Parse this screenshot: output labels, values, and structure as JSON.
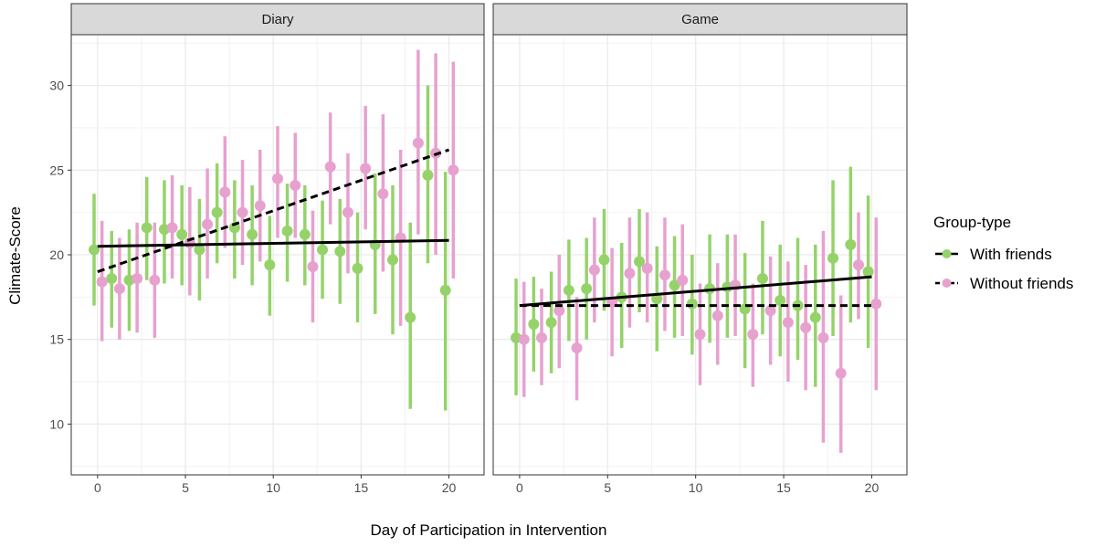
{
  "chart_data": {
    "type": "scatter",
    "xlabel": "Day of Participation in Intervention",
    "ylabel": "Climate-Score",
    "xlim": [
      -1.5,
      22
    ],
    "ylim": [
      7,
      33
    ],
    "xticks": [
      0,
      5,
      10,
      15,
      20
    ],
    "yticks": [
      10,
      15,
      20,
      25,
      30
    ],
    "grid": true,
    "legend": {
      "title": "Group-type",
      "placement": "right",
      "entries": [
        "With friends",
        "Without friends"
      ]
    },
    "colors": {
      "With friends": "#95d36a",
      "Without friends": "#e7a1cf",
      "trend": "#000000"
    },
    "x": [
      0,
      1,
      2,
      3,
      4,
      5,
      6,
      7,
      8,
      9,
      10,
      11,
      12,
      13,
      14,
      15,
      16,
      17,
      18,
      19,
      20
    ],
    "panels": [
      {
        "title": "Diary",
        "series": [
          {
            "name": "With friends",
            "line_style": "solid",
            "mean": [
              20.3,
              18.6,
              18.5,
              21.6,
              21.5,
              21.2,
              20.3,
              22.5,
              21.6,
              21.2,
              19.4,
              21.4,
              21.2,
              20.3,
              20.2,
              19.2,
              20.6,
              19.7,
              16.3,
              24.7,
              17.9
            ],
            "lower": [
              17.0,
              15.7,
              15.5,
              18.5,
              18.3,
              18.2,
              17.3,
              19.5,
              18.6,
              18.2,
              16.4,
              18.4,
              18.2,
              17.4,
              17.1,
              16.0,
              16.5,
              15.3,
              10.9,
              19.5,
              10.8
            ],
            "upper": [
              23.6,
              21.4,
              21.5,
              24.6,
              24.4,
              24.1,
              23.3,
              25.4,
              24.4,
              24.1,
              22.3,
              24.2,
              24.1,
              23.2,
              23.3,
              22.5,
              24.8,
              24.1,
              21.9,
              30.0,
              24.9
            ],
            "trend": [
              20.5,
              20.85
            ]
          },
          {
            "name": "Without friends",
            "line_style": "dashed",
            "mean": [
              18.4,
              18.0,
              18.6,
              18.5,
              21.6,
              20.7,
              21.8,
              23.7,
              22.5,
              22.9,
              24.5,
              24.1,
              19.3,
              25.2,
              22.5,
              25.1,
              23.6,
              21.0,
              26.6,
              26.0,
              25.0
            ],
            "lower": [
              14.9,
              15.0,
              15.4,
              15.1,
              18.6,
              17.6,
              18.6,
              20.4,
              19.4,
              19.6,
              21.0,
              21.0,
              16.0,
              21.8,
              18.9,
              21.5,
              19.0,
              15.8,
              21.2,
              20.0,
              18.6
            ],
            "upper": [
              22.0,
              21.0,
              21.9,
              21.9,
              24.7,
              24.0,
              25.1,
              27.0,
              25.6,
              26.2,
              27.6,
              27.2,
              22.6,
              28.4,
              26.0,
              28.8,
              28.3,
              26.2,
              32.1,
              31.9,
              31.4
            ],
            "trend": [
              19.0,
              26.2
            ]
          }
        ]
      },
      {
        "title": "Game",
        "series": [
          {
            "name": "With friends",
            "line_style": "solid",
            "mean": [
              15.1,
              15.9,
              16.0,
              17.9,
              18.0,
              19.7,
              17.5,
              19.6,
              17.4,
              18.2,
              17.1,
              18.0,
              18.1,
              16.8,
              18.6,
              17.3,
              17.0,
              16.3,
              19.8,
              20.6,
              19.0
            ],
            "lower": [
              11.7,
              13.1,
              13.0,
              14.9,
              15.0,
              16.7,
              14.5,
              16.6,
              14.3,
              15.1,
              14.1,
              14.8,
              15.1,
              13.3,
              15.3,
              14.0,
              13.8,
              12.2,
              15.2,
              16.0,
              14.5
            ],
            "upper": [
              18.6,
              18.7,
              19.0,
              20.9,
              21.0,
              22.7,
              20.7,
              22.7,
              20.5,
              21.1,
              20.0,
              21.2,
              21.2,
              20.1,
              22.0,
              20.6,
              21.0,
              20.6,
              24.4,
              25.2,
              23.5
            ],
            "trend": [
              17.0,
              18.7
            ]
          },
          {
            "name": "Without friends",
            "line_style": "dashed",
            "mean": [
              15.0,
              15.1,
              16.7,
              14.5,
              19.1,
              17.2,
              18.9,
              19.2,
              18.8,
              18.5,
              15.3,
              16.4,
              18.2,
              15.3,
              16.7,
              16.0,
              15.7,
              15.1,
              13.0,
              19.4,
              17.1
            ],
            "lower": [
              11.6,
              12.3,
              13.3,
              11.4,
              16.0,
              14.0,
              15.7,
              16.0,
              15.5,
              15.2,
              12.3,
              13.5,
              15.2,
              12.2,
              13.5,
              12.5,
              12.0,
              8.9,
              8.3,
              16.2,
              12.0
            ],
            "upper": [
              18.4,
              18.0,
              20.0,
              17.5,
              22.2,
              20.4,
              22.2,
              22.5,
              22.2,
              21.8,
              18.3,
              19.5,
              21.2,
              18.3,
              19.9,
              19.6,
              19.4,
              21.4,
              17.6,
              22.5,
              22.2
            ],
            "trend": [
              17.0,
              17.0
            ]
          }
        ]
      }
    ]
  }
}
